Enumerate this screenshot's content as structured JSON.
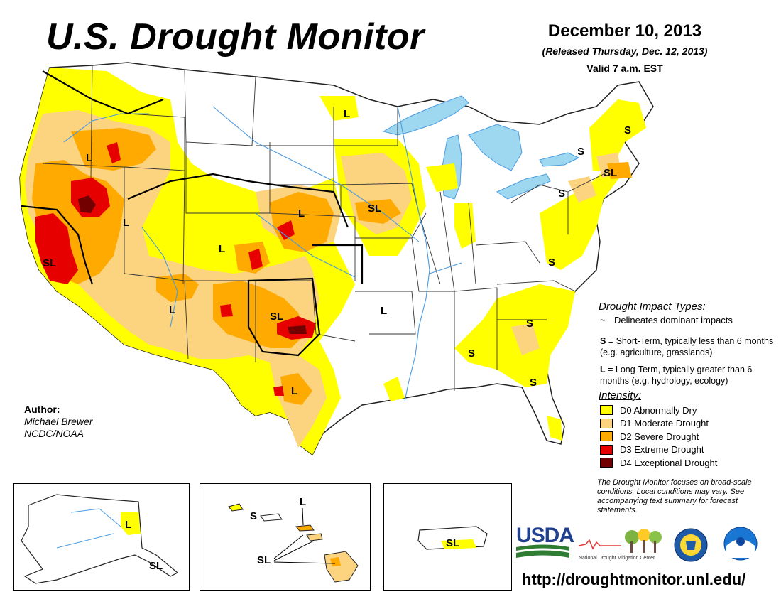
{
  "title": "U.S. Drought Monitor",
  "date": "December 10, 2013",
  "released": "(Released Thursday, Dec. 12, 2013)",
  "valid": "Valid 7 a.m. EST",
  "impact_types": {
    "title": "Drought Impact Types:",
    "dominant": "Delineates dominant impacts",
    "short_term_key": "S",
    "short_term_text": " = Short-Term, typically less than 6 months (e.g. agriculture, grasslands)",
    "long_term_key": "L",
    "long_term_text": " = Long-Term, typically greater than 6 months (e.g. hydrology, ecology)"
  },
  "intensity": {
    "title": "Intensity:",
    "levels": [
      {
        "label": "D0 Abnormally Dry",
        "color": "#FFFF00"
      },
      {
        "label": "D1 Moderate Drought",
        "color": "#FCD37F"
      },
      {
        "label": "D2 Severe Drought",
        "color": "#FFAA00"
      },
      {
        "label": "D3 Extreme Drought",
        "color": "#E60000"
      },
      {
        "label": "D4 Exceptional Drought",
        "color": "#730000"
      }
    ]
  },
  "author": {
    "label": "Author:",
    "name": "Michael Brewer",
    "org": "NCDC/NOAA"
  },
  "note": "The Drought Monitor focuses on broad-scale conditions. Local conditions may vary. See accompanying text summary for forecast statements.",
  "url": "http://droughtmonitor.unl.edu/",
  "logos": {
    "usda": "USDA",
    "ndmc": "National Drought Mitigation Center"
  },
  "map_labels": {
    "l_nw": "L",
    "l_nd": "L",
    "s_maine": "S",
    "s_vt": "S",
    "sl_ct": "SL",
    "s_ny": "S",
    "sl_ia": "SL",
    "l_ne": "L",
    "l_nv": "L",
    "l_co": "L",
    "sl_ca": "SL",
    "l_az": "L",
    "sl_ok": "SL",
    "l_ar": "L",
    "s_va": "S",
    "s_sc": "S",
    "s_ga": "S",
    "s_fl": "S",
    "l_tx": "L",
    "l_ak": "L",
    "sl_ak": "SL",
    "s_hi": "S",
    "l_hi": "L",
    "sl_hi": "SL",
    "sl_pr": "SL"
  },
  "colors": {
    "water": "#9ED8F0",
    "river": "#4A9BE0"
  }
}
